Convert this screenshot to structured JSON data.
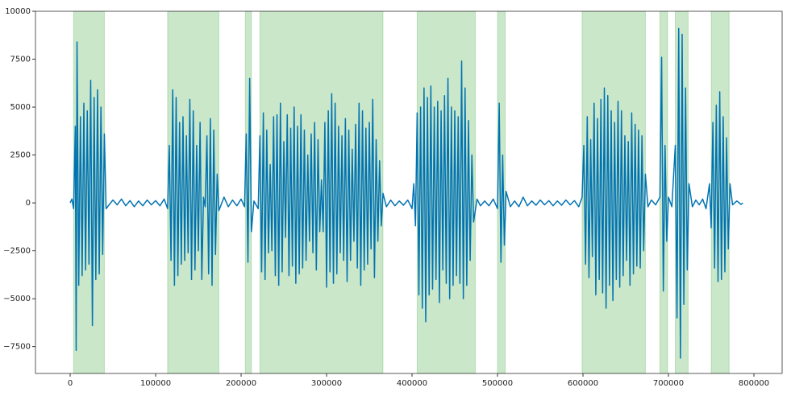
{
  "chart_data": {
    "type": "line",
    "xlim": [
      -40600,
      833000
    ],
    "ylim": [
      -8900,
      10000
    ],
    "xticks": [
      0,
      100000,
      200000,
      300000,
      400000,
      500000,
      600000,
      700000,
      800000
    ],
    "yticks": [
      {
        "value": -7500,
        "label": "−7500"
      },
      {
        "value": -5000,
        "label": "−5000"
      },
      {
        "value": -2500,
        "label": "−2500"
      },
      0,
      2500,
      5000,
      7500,
      10000
    ],
    "spans": [
      [
        4000,
        40000
      ],
      [
        114000,
        174000
      ],
      [
        205000,
        212000
      ],
      [
        222000,
        366000
      ],
      [
        406000,
        474000
      ],
      [
        500000,
        509000
      ],
      [
        599000,
        673000
      ],
      [
        690000,
        699000
      ],
      [
        708000,
        723000
      ],
      [
        750000,
        771000
      ]
    ],
    "span_color": "#2ca02c",
    "span_alpha": 0.25,
    "x": [
      0,
      2000,
      4000,
      6000,
      7000,
      8000,
      10000,
      12000,
      14000,
      16000,
      18000,
      20000,
      22000,
      24000,
      26000,
      28000,
      30000,
      32000,
      34000,
      36000,
      38000,
      40000,
      42000,
      50000,
      55000,
      60000,
      65000,
      70000,
      75000,
      80000,
      85000,
      90000,
      95000,
      100000,
      105000,
      110000,
      114000,
      116000,
      118000,
      120000,
      122000,
      124000,
      126000,
      128000,
      130000,
      132000,
      134000,
      136000,
      138000,
      140000,
      142000,
      144000,
      146000,
      148000,
      150000,
      152000,
      154000,
      156000,
      158000,
      160000,
      162000,
      164000,
      166000,
      168000,
      170000,
      172000,
      174000,
      180000,
      185000,
      190000,
      195000,
      200000,
      204000,
      206000,
      208000,
      210000,
      212000,
      215000,
      220000,
      222000,
      224000,
      226000,
      228000,
      230000,
      232000,
      234000,
      236000,
      238000,
      240000,
      242000,
      244000,
      246000,
      248000,
      250000,
      252000,
      254000,
      256000,
      258000,
      260000,
      262000,
      264000,
      266000,
      268000,
      270000,
      272000,
      274000,
      276000,
      278000,
      280000,
      282000,
      284000,
      286000,
      288000,
      290000,
      292000,
      294000,
      296000,
      298000,
      300000,
      302000,
      304000,
      306000,
      308000,
      310000,
      312000,
      314000,
      316000,
      318000,
      320000,
      322000,
      324000,
      326000,
      328000,
      330000,
      332000,
      334000,
      336000,
      338000,
      340000,
      342000,
      344000,
      346000,
      348000,
      350000,
      352000,
      354000,
      356000,
      358000,
      360000,
      362000,
      364000,
      366000,
      370000,
      375000,
      380000,
      385000,
      390000,
      395000,
      400000,
      402000,
      404000,
      406000,
      408000,
      410000,
      412000,
      414000,
      416000,
      418000,
      420000,
      422000,
      424000,
      426000,
      428000,
      430000,
      432000,
      434000,
      436000,
      438000,
      440000,
      442000,
      444000,
      446000,
      448000,
      450000,
      452000,
      454000,
      456000,
      458000,
      460000,
      462000,
      464000,
      466000,
      468000,
      470000,
      472000,
      476000,
      480000,
      485000,
      490000,
      495000,
      500000,
      502000,
      504000,
      506000,
      508000,
      510000,
      515000,
      520000,
      525000,
      530000,
      535000,
      540000,
      545000,
      550000,
      555000,
      560000,
      565000,
      570000,
      575000,
      580000,
      585000,
      590000,
      595000,
      599000,
      601000,
      603000,
      605000,
      607000,
      609000,
      611000,
      613000,
      615000,
      617000,
      619000,
      621000,
      623000,
      625000,
      627000,
      629000,
      631000,
      633000,
      635000,
      637000,
      639000,
      641000,
      643000,
      645000,
      647000,
      649000,
      651000,
      653000,
      655000,
      657000,
      659000,
      661000,
      663000,
      665000,
      667000,
      669000,
      671000,
      673000,
      676000,
      680000,
      685000,
      690000,
      692000,
      694000,
      696000,
      698000,
      700000,
      704000,
      708000,
      710000,
      712000,
      714000,
      716000,
      718000,
      720000,
      722000,
      724000,
      728000,
      732000,
      736000,
      740000,
      744000,
      748000,
      750000,
      752000,
      754000,
      756000,
      758000,
      760000,
      762000,
      764000,
      766000,
      768000,
      770000,
      772000,
      775000,
      780000,
      785000,
      787000
    ],
    "series": [
      {
        "color": "#0173b2",
        "values": [
          0,
          200,
          -300,
          4000,
          -7700,
          8400,
          -4300,
          4500,
          -3800,
          5200,
          -3500,
          4800,
          -3200,
          6400,
          -6400,
          5500,
          -4000,
          5900,
          -3700,
          5000,
          -2700,
          3600,
          -300,
          150,
          -100,
          200,
          -150,
          120,
          -200,
          100,
          -150,
          150,
          -100,
          120,
          -150,
          200,
          -300,
          3000,
          -3000,
          5900,
          -4300,
          5500,
          -3800,
          4200,
          -3200,
          4500,
          -3000,
          3500,
          -2600,
          5400,
          -4000,
          4800,
          -3500,
          3000,
          -2500,
          4200,
          -4000,
          300,
          -200,
          3500,
          -3700,
          4400,
          -4300,
          3800,
          -2700,
          1500,
          -400,
          300,
          -200,
          150,
          -150,
          200,
          -200,
          3600,
          -3100,
          6500,
          -1500,
          100,
          -300,
          3500,
          -3600,
          4700,
          -4000,
          3800,
          -2600,
          2000,
          -2500,
          4500,
          -3800,
          4600,
          -4300,
          5200,
          -3600,
          3200,
          -1800,
          4600,
          -3800,
          3900,
          -3300,
          5000,
          -4200,
          4000,
          -3700,
          4600,
          -3400,
          3800,
          -3000,
          2500,
          -2000,
          3600,
          -2600,
          4200,
          -3500,
          3300,
          -1500,
          1200,
          -1500,
          4200,
          -4400,
          4800,
          -3600,
          5700,
          -4200,
          5200,
          -3700,
          4000,
          -2600,
          3500,
          -3000,
          4400,
          -4100,
          3800,
          -3000,
          2800,
          -2000,
          4100,
          -3400,
          5200,
          -4300,
          4800,
          -3500,
          3900,
          -3200,
          4200,
          -2400,
          5400,
          -3900,
          3300,
          -2000,
          2200,
          -1200,
          500,
          -200,
          150,
          -150,
          100,
          -120,
          150,
          -300,
          1000,
          -1200,
          4700,
          -4800,
          5000,
          -5500,
          6000,
          -6200,
          5500,
          -4800,
          6100,
          -4500,
          5000,
          -4000,
          5300,
          -5200,
          4800,
          -3500,
          5600,
          -4200,
          6500,
          -5000,
          5000,
          -4300,
          4800,
          -3800,
          4500,
          -4200,
          7400,
          -5000,
          6000,
          -4300,
          4300,
          -3000,
          2500,
          -1000,
          200,
          -150,
          100,
          -150,
          200,
          -300,
          5200,
          -3100,
          2500,
          -2200,
          600,
          -200,
          100,
          -200,
          300,
          -150,
          100,
          -120,
          150,
          -100,
          120,
          -150,
          100,
          -120,
          150,
          -100,
          120,
          -200,
          300,
          3000,
          -3200,
          4500,
          -3900,
          3300,
          -2800,
          5200,
          -4800,
          4400,
          -4000,
          5400,
          -4700,
          6000,
          -5500,
          5600,
          -4300,
          4800,
          -5100,
          4200,
          -4000,
          5300,
          -4400,
          4800,
          -3800,
          3500,
          -3000,
          3200,
          -4300,
          4700,
          -3700,
          4100,
          -3300,
          3800,
          -3400,
          3500,
          -2500,
          1500,
          -200,
          150,
          -100,
          300,
          7600,
          -4600,
          3000,
          -2000,
          300,
          -200,
          3000,
          -6000,
          9100,
          -8100,
          8800,
          -5300,
          6000,
          -3500,
          1000,
          -200,
          150,
          -100,
          200,
          -300,
          1000,
          -1300,
          4200,
          -3400,
          5100,
          -4100,
          5800,
          -4000,
          4500,
          -3600,
          3400,
          -2400,
          1000,
          -100,
          100,
          -80,
          0
        ]
      }
    ]
  }
}
